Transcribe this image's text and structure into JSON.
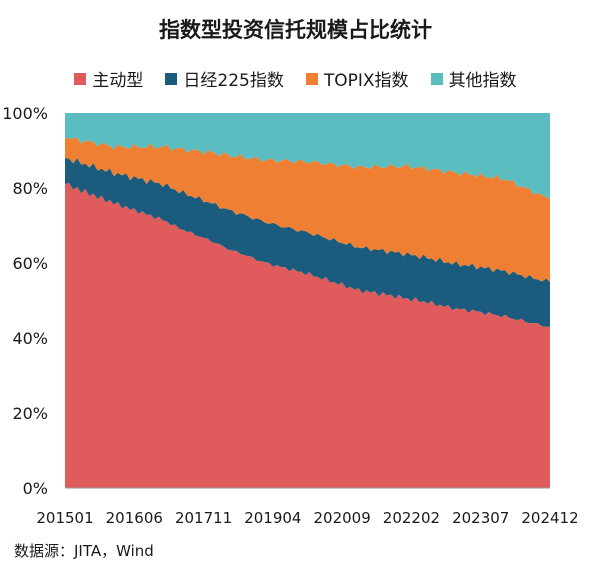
{
  "chart_data": {
    "type": "area",
    "stacked": true,
    "percent": true,
    "title": "指数型投资信托规模占比统计",
    "x": [
      "201501",
      "201502",
      "201503",
      "201504",
      "201505",
      "201506",
      "201507",
      "201508",
      "201509",
      "201510",
      "201511",
      "201512",
      "201601",
      "201602",
      "201603",
      "201604",
      "201605",
      "201606",
      "201607",
      "201608",
      "201609",
      "201610",
      "201611",
      "201612",
      "201701",
      "201702",
      "201703",
      "201704",
      "201705",
      "201706",
      "201707",
      "201708",
      "201709",
      "201710",
      "201711",
      "201712",
      "201801",
      "201802",
      "201803",
      "201804",
      "201805",
      "201806",
      "201807",
      "201808",
      "201809",
      "201810",
      "201811",
      "201812",
      "201901",
      "201902",
      "201903",
      "201904",
      "201905",
      "201906",
      "201907",
      "201908",
      "201909",
      "201910",
      "201911",
      "201912",
      "202001",
      "202002",
      "202003",
      "202004",
      "202005",
      "202006",
      "202007",
      "202008",
      "202009",
      "202010",
      "202011",
      "202012",
      "202101",
      "202102",
      "202103",
      "202104",
      "202105",
      "202106",
      "202107",
      "202108",
      "202109",
      "202110",
      "202111",
      "202112",
      "202201",
      "202202",
      "202203",
      "202204",
      "202205",
      "202206",
      "202207",
      "202208",
      "202209",
      "202210",
      "202211",
      "202212",
      "202301",
      "202302",
      "202303",
      "202304",
      "202305",
      "202306",
      "202307",
      "202308",
      "202309",
      "202310",
      "202311",
      "202312",
      "202401",
      "202402",
      "202403",
      "202404",
      "202405",
      "202406",
      "202407",
      "202408",
      "202409",
      "202410",
      "202411",
      "202412"
    ],
    "tick_labels": [
      "201501",
      "201606",
      "201711",
      "201904",
      "202009",
      "202202",
      "202307",
      "202412"
    ],
    "series": [
      {
        "name": "主动型",
        "color": "#e05b5b",
        "anchors": [
          [
            0,
            81
          ],
          [
            2,
            80
          ],
          [
            5,
            79
          ],
          [
            8,
            77.5
          ],
          [
            12,
            76
          ],
          [
            17,
            74
          ],
          [
            20,
            73
          ],
          [
            24,
            71.5
          ],
          [
            28,
            68.5
          ],
          [
            32,
            67
          ],
          [
            35,
            66
          ],
          [
            37,
            65
          ],
          [
            40,
            63
          ],
          [
            44,
            62
          ],
          [
            48,
            60.5
          ],
          [
            52,
            59
          ],
          [
            56,
            58
          ],
          [
            60,
            57
          ],
          [
            63,
            56
          ],
          [
            66,
            55
          ],
          [
            69,
            54
          ],
          [
            72,
            53
          ],
          [
            75,
            52.5
          ],
          [
            80,
            51.5
          ],
          [
            84,
            50.5
          ],
          [
            88,
            50
          ],
          [
            92,
            49
          ],
          [
            96,
            48
          ],
          [
            100,
            47.5
          ],
          [
            104,
            46.5
          ],
          [
            108,
            45.5
          ],
          [
            112,
            44.5
          ],
          [
            116,
            43.5
          ],
          [
            119,
            43
          ]
        ]
      },
      {
        "name": "日经225指数",
        "color": "#1b5c7e",
        "anchors": [
          [
            0,
            7
          ],
          [
            12,
            8
          ],
          [
            24,
            9.5
          ],
          [
            36,
            10
          ],
          [
            48,
            10.8
          ],
          [
            60,
            11
          ],
          [
            72,
            11.5
          ],
          [
            84,
            11.8
          ],
          [
            96,
            12
          ],
          [
            108,
            12
          ],
          [
            119,
            12
          ]
        ]
      },
      {
        "name": "TOPIX指数",
        "color": "#ef8033",
        "anchors": [
          [
            0,
            5.5
          ],
          [
            12,
            7
          ],
          [
            24,
            10
          ],
          [
            36,
            13.5
          ],
          [
            48,
            16.3
          ],
          [
            60,
            19
          ],
          [
            72,
            21.5
          ],
          [
            84,
            23.5
          ],
          [
            96,
            24.5
          ],
          [
            108,
            24.5
          ],
          [
            119,
            22
          ]
        ]
      },
      {
        "name": "其他指数",
        "color": "#5bbdbf",
        "anchors": [
          [
            0,
            6.5
          ],
          [
            12,
            9
          ],
          [
            24,
            9
          ],
          [
            36,
            10.5
          ],
          [
            48,
            12.4
          ],
          [
            60,
            13
          ],
          [
            72,
            14.5
          ],
          [
            84,
            14.2
          ],
          [
            96,
            16
          ],
          [
            108,
            17.5
          ],
          [
            119,
            23
          ]
        ]
      }
    ],
    "y_ticks": [
      "0%",
      "20%",
      "40%",
      "60%",
      "80%",
      "100%"
    ],
    "ylim": [
      0,
      100
    ],
    "legend": "top",
    "grid": false
  },
  "source": "数据源：JITA，Wind"
}
